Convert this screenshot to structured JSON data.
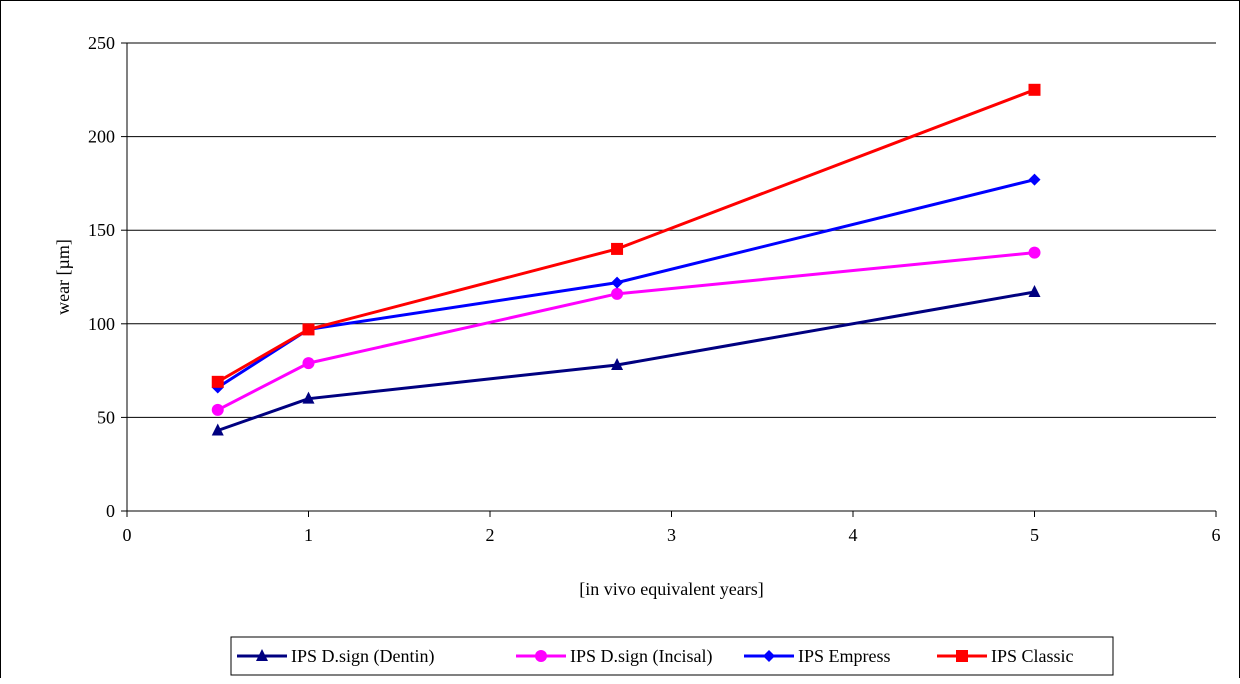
{
  "chart_data": {
    "type": "line",
    "title": "",
    "xlabel": "[in vivo equivalent years]",
    "ylabel": "wear [µm]",
    "xlim": [
      0,
      6
    ],
    "ylim": [
      0,
      250
    ],
    "x_ticks": [
      0,
      1,
      2,
      3,
      4,
      5,
      6
    ],
    "y_ticks": [
      0,
      50,
      100,
      150,
      200,
      250
    ],
    "x_tick_labels": [
      "0",
      "1",
      "2",
      "3",
      "4",
      "5",
      "6"
    ],
    "y_tick_labels": [
      "0",
      "50",
      "100",
      "150",
      "200",
      "250"
    ],
    "grid": "horizontal",
    "legend_position": "bottom",
    "series": [
      {
        "name": "IPS D.sign (Dentin)",
        "color": "#000080",
        "marker": "triangle",
        "x": [
          0.5,
          1,
          2.7,
          5
        ],
        "y": [
          43,
          60,
          78,
          117
        ]
      },
      {
        "name": "IPS D.sign (Incisal)",
        "color": "#ff00ff",
        "marker": "circle",
        "x": [
          0.5,
          1,
          2.7,
          5
        ],
        "y": [
          54,
          79,
          116,
          138
        ]
      },
      {
        "name": "IPS Empress",
        "color": "#0000ff",
        "marker": "diamond",
        "x": [
          0.5,
          1,
          2.7,
          5
        ],
        "y": [
          66,
          97,
          122,
          177
        ]
      },
      {
        "name": "IPS Classic",
        "color": "#ff0000",
        "marker": "square",
        "x": [
          0.5,
          1,
          2.7,
          5
        ],
        "y": [
          69,
          97,
          140,
          225
        ]
      }
    ]
  }
}
